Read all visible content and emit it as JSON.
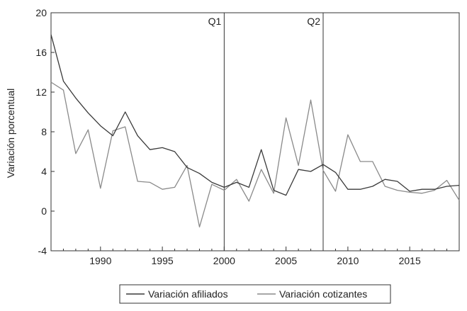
{
  "chart_data": {
    "type": "line",
    "title": "",
    "xlabel": "",
    "ylabel": "Variación porcentual",
    "xlim": [
      1986,
      2019
    ],
    "ylim": [
      -4,
      20
    ],
    "x_ticks": [
      1990,
      1995,
      2000,
      2005,
      2010,
      2015
    ],
    "y_ticks": [
      -4,
      0,
      4,
      8,
      12,
      16,
      20
    ],
    "grid": false,
    "legend_position": "bottom",
    "annotations": [
      {
        "label": "Q1",
        "x": 2000
      },
      {
        "label": "Q2",
        "x": 2008
      }
    ],
    "x": [
      1986,
      1987,
      1988,
      1989,
      1990,
      1991,
      1992,
      1993,
      1994,
      1995,
      1996,
      1997,
      1998,
      1999,
      2000,
      2001,
      2002,
      2003,
      2004,
      2005,
      2006,
      2007,
      2008,
      2009,
      2010,
      2011,
      2012,
      2013,
      2014,
      2015,
      2016,
      2017,
      2018,
      2019
    ],
    "series": [
      {
        "name": "Variación afiliados",
        "color": "#3a3a3a",
        "values": [
          17.8,
          13.1,
          11.4,
          9.9,
          8.6,
          7.6,
          10.0,
          7.6,
          6.2,
          6.4,
          6.0,
          4.4,
          3.8,
          2.9,
          2.4,
          2.9,
          2.4,
          6.2,
          2.1,
          1.6,
          4.2,
          4.0,
          4.7,
          3.9,
          2.2,
          2.2,
          2.5,
          3.2,
          3.0,
          2.0,
          2.2,
          2.2,
          2.5,
          2.6
        ]
      },
      {
        "name": "Variación cotizantes",
        "color": "#8a8a8a",
        "values": [
          13.0,
          12.2,
          5.8,
          8.2,
          2.3,
          8.1,
          8.5,
          3.0,
          2.9,
          2.2,
          2.4,
          4.6,
          -1.6,
          2.7,
          2.1,
          3.2,
          1.0,
          4.2,
          1.8,
          9.4,
          4.6,
          11.2,
          4.1,
          2.0,
          7.7,
          5.0,
          5.0,
          2.5,
          2.1,
          1.9,
          1.8,
          2.1,
          3.1,
          1.1
        ]
      }
    ]
  }
}
